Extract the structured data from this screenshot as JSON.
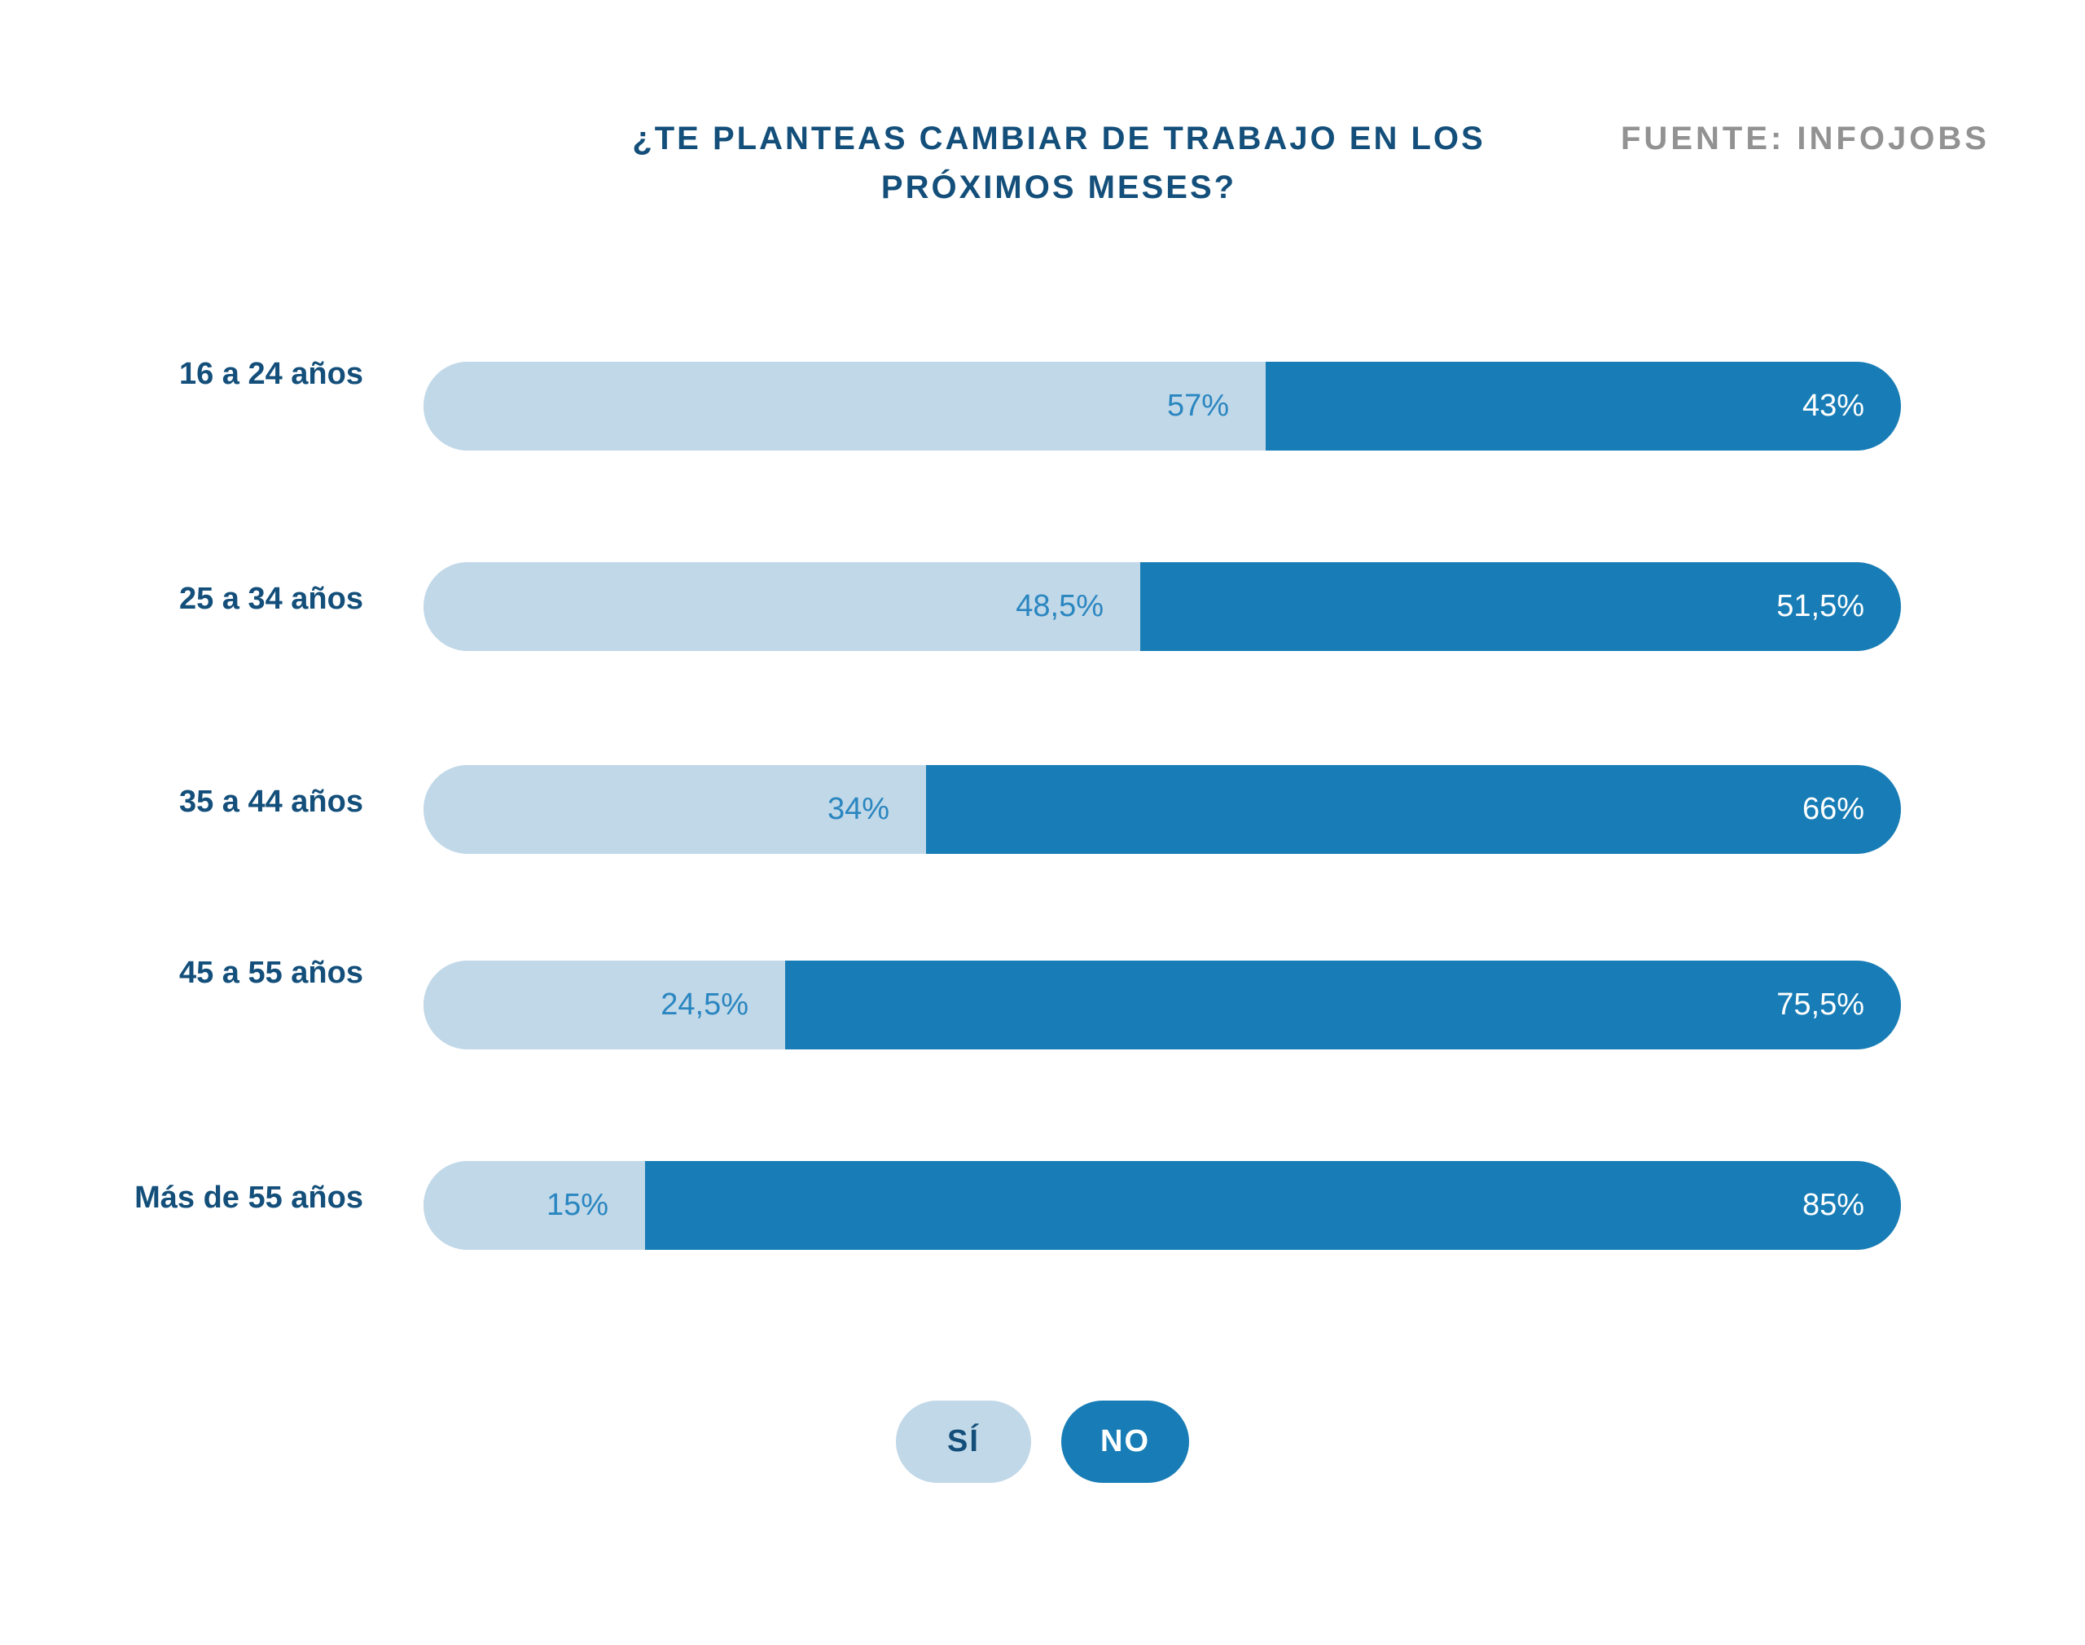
{
  "header": {
    "title_line1": "¿TE PLANTEAS CAMBIAR DE TRABAJO EN LOS",
    "title_line2": "PRÓXIMOS MESES?",
    "source": "FUENTE: INFOJOBS"
  },
  "colors": {
    "yes": "#c1d8e8",
    "no": "#187db6",
    "title": "#134f7a",
    "source": "#929292"
  },
  "chart_data": {
    "type": "bar",
    "orientation": "horizontal",
    "stacked": true,
    "title": "¿TE PLANTEAS CAMBIAR DE TRABAJO EN LOS PRÓXIMOS MESES?",
    "source": "FUENTE: INFOJOBS",
    "categories": [
      "16 a 24 años",
      "25 a 34 años",
      "35 a 44 años",
      "45 a 55 años",
      "Más de 55 años"
    ],
    "series": [
      {
        "name": "SÍ",
        "values": [
          57,
          48.5,
          34,
          24.5,
          15
        ],
        "labels": [
          "57%",
          "48,5%",
          "34%",
          "24,5%",
          "15%"
        ]
      },
      {
        "name": "NO",
        "values": [
          43,
          51.5,
          66,
          75.5,
          85
        ],
        "labels": [
          "43%",
          "51,5%",
          "66%",
          "75,5%",
          "85%"
        ]
      }
    ],
    "xlim": [
      0,
      100
    ],
    "xlabel": "",
    "ylabel": "",
    "grid": false,
    "legend": {
      "position": "bottom-center",
      "entries": [
        "SÍ",
        "NO"
      ]
    }
  }
}
